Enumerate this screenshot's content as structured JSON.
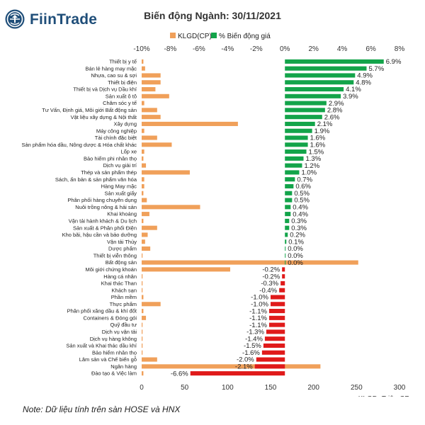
{
  "logo": {
    "text": "FiinTrade"
  },
  "title": "Biến động Ngành: 30/11/2021",
  "footnote": "Note: Dữ liệu tính trên sàn HOSE và HNX",
  "colors": {
    "volume": "#f0a05a",
    "pos": "#13a44a",
    "neg": "#e01a1a",
    "brand": "#1f4e79"
  },
  "chart_data": {
    "type": "bar",
    "orientation": "horizontal",
    "title": "Biến động Ngành: 30/11/2021",
    "legend": {
      "position": "top",
      "entries": [
        "KLGD(CP)",
        "% Biến động giá"
      ]
    },
    "x_top": {
      "ticks": [
        "-10%",
        "-8%",
        "-6%",
        "-4%",
        "-2%",
        "0%",
        "2%",
        "4%",
        "6%",
        "8%"
      ],
      "range": [
        -10,
        8
      ],
      "unit": "%"
    },
    "x_bottom": {
      "ticks": [
        "0",
        "50",
        "100",
        "150",
        "200",
        "250",
        "300"
      ],
      "range": [
        0,
        300
      ],
      "label": "KLGD- Triệu CP"
    },
    "categories": [
      "Thiết bị y tế",
      "Bán lẻ hàng may mặc",
      "Nhựa, cao su & sợi",
      "Thiết bị điện",
      "Thiết bị và Dịch vụ Dầu khí",
      "Sản xuất ô tô",
      "Chăm sóc y tế",
      "Tư Vấn, Định giá, Môi giới Bất động sản",
      "Vật liệu xây dựng & Nội thất",
      "Xây dựng",
      "Máy công nghiệp",
      "Tài chính đặc biệt",
      "Sản phẩm hóa dầu, Nông dược & Hóa chất khác",
      "Lốp xe",
      "Bảo hiểm phi nhân thọ",
      "Dịch vụ giải trí",
      "Thép và sản phẩm thép",
      "Sách, ấn bản & sản phẩm văn hóa",
      "Hàng May mặc",
      "Sản xuất giấy",
      "Phân phối hàng chuyên dụng",
      "Nuôi trồng nông & hải sản",
      "Khai khoáng",
      "Vận tải hành khách & Du lịch",
      "Sản xuất & Phân phối Điện",
      "Kho bãi, hậu cần và bảo dưỡng",
      "Vận tải Thủy",
      "Dược phẩm",
      "Thiết bị viễn thông",
      "Bất động sản",
      "Môi giới chứng khoán",
      "Hàng cá nhân",
      "Khai thác Than",
      "Khách sạn",
      "Phần mềm",
      "Thực phẩm",
      "Phân phối xăng dầu & khí đốt",
      "Containers & Đóng gói",
      "Quỹ đầu tư",
      "Dịch vụ vận tải",
      "Dịch vụ hàng không",
      "Sản xuất và Khai thác dầu khí",
      "Bảo hiểm nhân thọ",
      "Lâm sản và Chế biến gỗ",
      "Ngân hàng",
      "Đào tạo & Việc làm"
    ],
    "series": [
      {
        "name": "% Biến động giá",
        "axis": "top",
        "values": [
          6.9,
          5.7,
          4.9,
          4.8,
          4.1,
          3.9,
          2.9,
          2.8,
          2.6,
          2.1,
          1.9,
          1.6,
          1.6,
          1.5,
          1.3,
          1.2,
          1.0,
          0.7,
          0.6,
          0.5,
          0.5,
          0.4,
          0.4,
          0.3,
          0.3,
          0.2,
          0.1,
          0.0,
          0.0,
          0.0,
          -0.2,
          -0.2,
          -0.3,
          -0.4,
          -1.0,
          -1.0,
          -1.1,
          -1.1,
          -1.1,
          -1.3,
          -1.4,
          -1.5,
          -1.6,
          -2.0,
          -2.1,
          -6.6
        ]
      },
      {
        "name": "KLGD(CP)",
        "axis": "bottom",
        "values": [
          2,
          4,
          22,
          22,
          16,
          32,
          3,
          18,
          22,
          112,
          3,
          18,
          35,
          3,
          2,
          5,
          56,
          3,
          3,
          2,
          6,
          68,
          9,
          2,
          18,
          7,
          4,
          10,
          1,
          252,
          103,
          1,
          1,
          1,
          2,
          22,
          2,
          5,
          1,
          1,
          1,
          1,
          1,
          18,
          208,
          2
        ]
      }
    ]
  }
}
